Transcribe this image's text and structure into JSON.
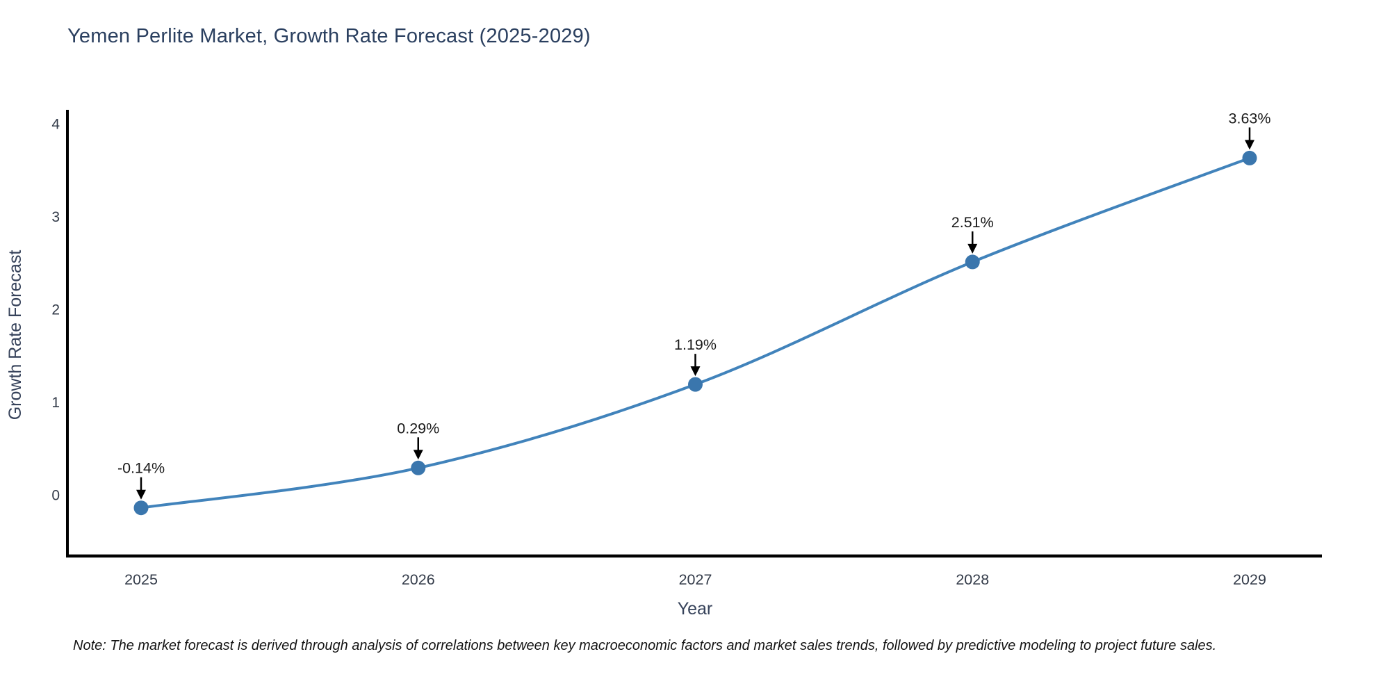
{
  "note": "Note: The market forecast is derived through analysis of correlations between key macroeconomic factors and market sales trends, followed by predictive modeling to project future sales.",
  "chart_data": {
    "type": "line",
    "title": "Yemen Perlite Market, Growth Rate Forecast (2025-2029)",
    "xlabel": "Year",
    "ylabel": "Growth Rate Forecast",
    "categories": [
      "2025",
      "2026",
      "2027",
      "2028",
      "2029"
    ],
    "values": [
      -0.14,
      0.29,
      1.19,
      2.51,
      3.63
    ],
    "point_labels": [
      "-0.14%",
      "0.29%",
      "1.19%",
      "2.51%",
      "3.63%"
    ],
    "yticks": [
      "0",
      "1",
      "2",
      "3",
      "4"
    ],
    "ylim": [
      -0.66,
      4.14
    ],
    "grid": false,
    "legend_position": "none",
    "colors": {
      "line": "#4183bb",
      "marker": "#3a76ad",
      "annotation_text": "#1a1a1a",
      "arrow": "#000000",
      "spine": "#000000",
      "title_text": "#2a3f5f",
      "axis_label_text": "#36425a",
      "tick_text": "#333b49",
      "note_text": "#141414",
      "background": "#ffffff"
    }
  }
}
